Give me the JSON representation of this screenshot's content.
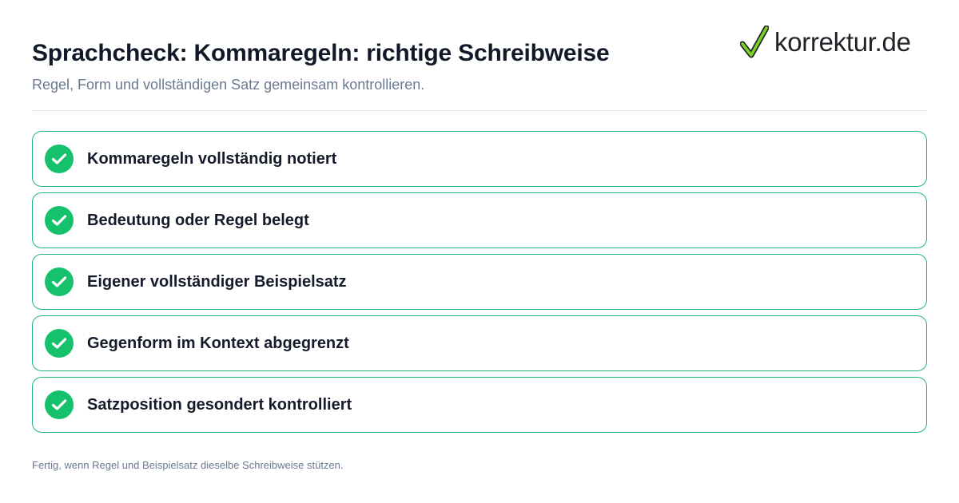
{
  "header": {
    "title": "Sprachcheck: Kommaregeln: richtige Schreibweise",
    "subtitle": "Regel, Form und vollständigen Satz gemeinsam kontrollieren."
  },
  "logo": {
    "icon": "checkmark-icon",
    "text": "korrektur.de"
  },
  "checklist": {
    "items": [
      {
        "label": "Kommaregeln vollständig notiert",
        "checked": true
      },
      {
        "label": "Bedeutung oder Regel belegt",
        "checked": true
      },
      {
        "label": "Eigener vollständiger Beispielsatz",
        "checked": true
      },
      {
        "label": "Gegenform im Kontext abgegrenzt",
        "checked": true
      },
      {
        "label": "Satzposition gesondert kontrolliert",
        "checked": true
      }
    ]
  },
  "footer": {
    "note": "Fertig, wenn Regel und Beispielsatz dieselbe Schreibweise stützen."
  },
  "colors": {
    "accent_green": "#15c26b",
    "border_green": "#22b573",
    "title_text": "#111827",
    "muted_text": "#6b7a90"
  }
}
